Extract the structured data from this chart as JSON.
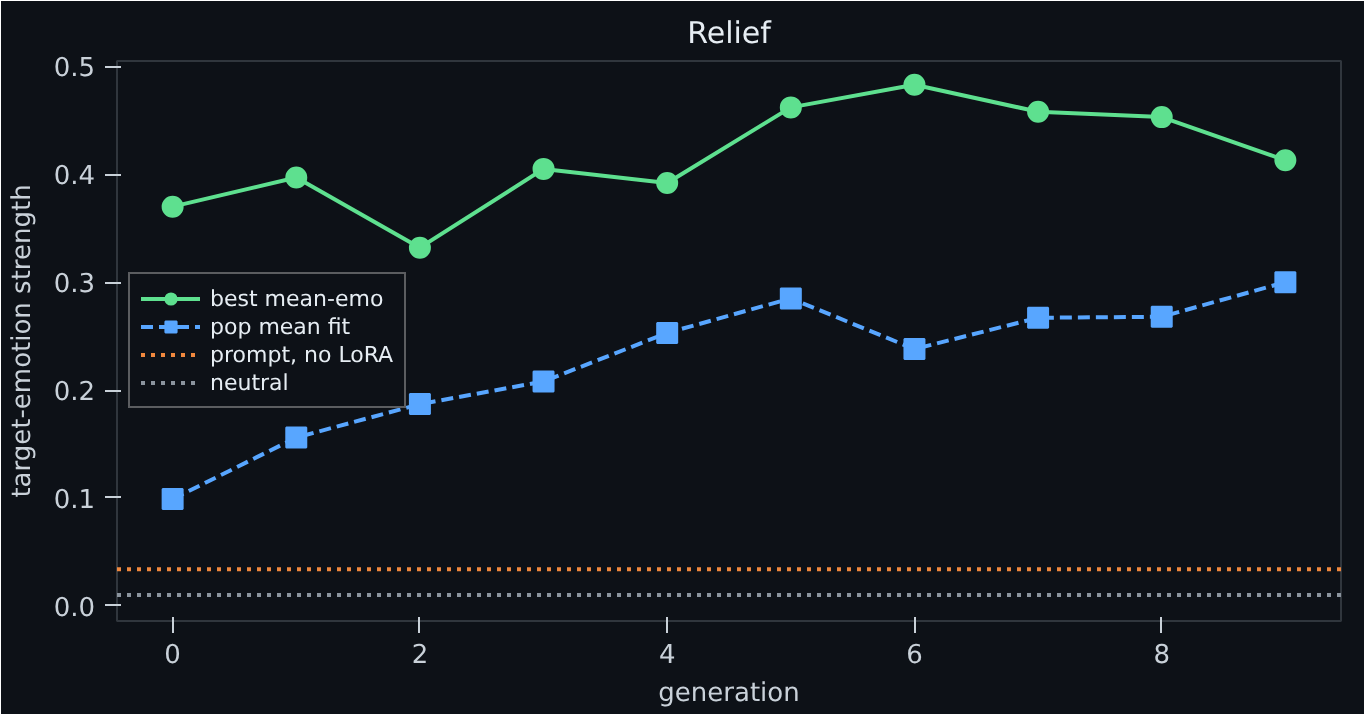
{
  "chart_data": {
    "type": "line",
    "title": "Relief",
    "xlabel": "generation",
    "ylabel": "target-emotion strength",
    "x": [
      0,
      1,
      2,
      3,
      4,
      5,
      6,
      7,
      8,
      9
    ],
    "series": [
      {
        "name": "best mean-emo",
        "color": "#5ee08f",
        "marker": "circle",
        "line_style": "solid",
        "values": [
          0.37,
          0.397,
          0.332,
          0.405,
          0.392,
          0.462,
          0.483,
          0.458,
          0.453,
          0.413
        ]
      },
      {
        "name": "pop mean fit",
        "color": "#58a6ff",
        "marker": "square",
        "line_style": "dashed",
        "values": [
          0.099,
          0.156,
          0.187,
          0.208,
          0.253,
          0.285,
          0.238,
          0.267,
          0.268,
          0.3
        ]
      }
    ],
    "ref_lines": [
      {
        "axis": "y",
        "value": 0.034,
        "label": "prompt, no LoRA",
        "color": "#f0883e",
        "line_style": "dotted"
      },
      {
        "axis": "y",
        "value": 0.01,
        "label": "neutral",
        "color": "#8b949e",
        "line_style": "dotted"
      }
    ],
    "xlim": [
      -0.45,
      9.45
    ],
    "ylim": [
      -0.014,
      0.505
    ],
    "xticks": [
      0,
      2,
      4,
      6,
      8
    ],
    "yticks": [
      {
        "value": 0,
        "label": "0.0"
      },
      0.1,
      0.2,
      0.3,
      0.4,
      0.5
    ],
    "grid": false,
    "legend": "left"
  }
}
